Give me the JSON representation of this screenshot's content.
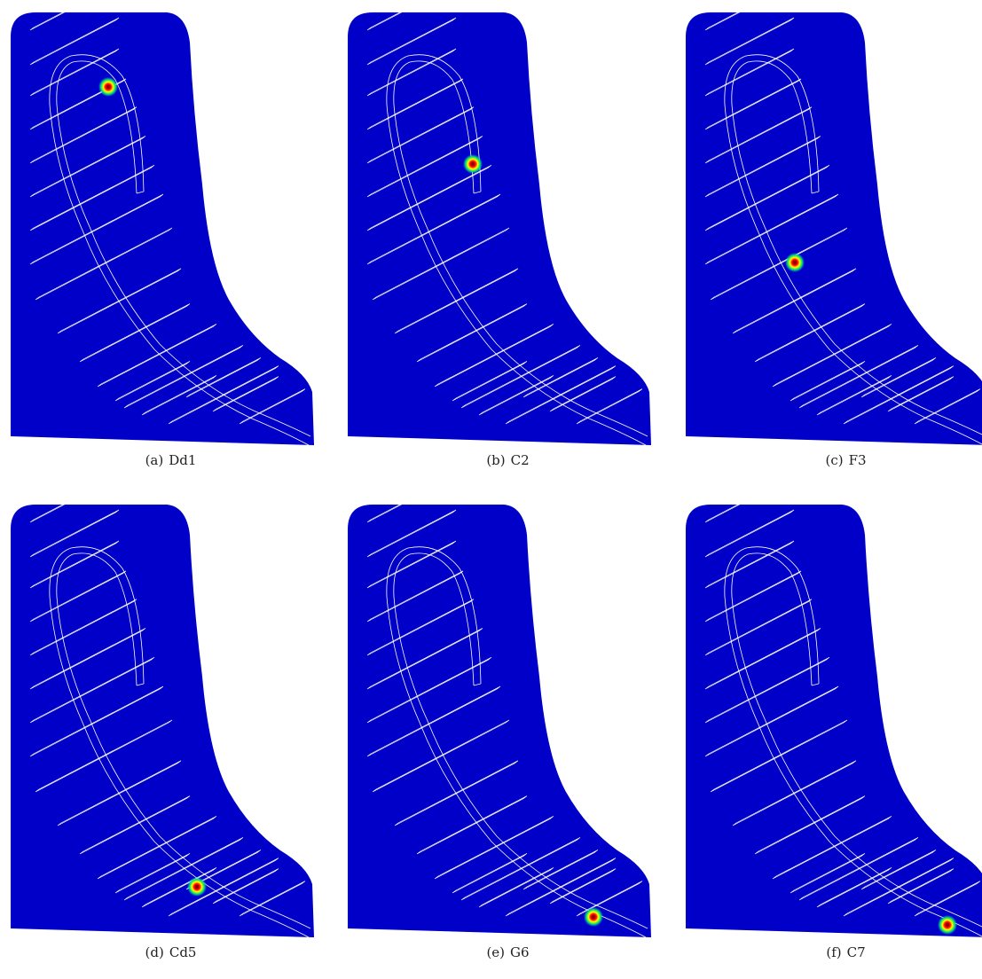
{
  "colors": {
    "background": "#0000c8",
    "lines": "#ffffff",
    "hotspot_core": "#ff0000",
    "hotspot_mid": "#ffff00",
    "hotspot_outer": "#00c0ff"
  },
  "panels": [
    {
      "tag": "(a)",
      "label": "Dd1",
      "hotspot": "Dd1"
    },
    {
      "tag": "(b)",
      "label": "C2",
      "hotspot": "C2"
    },
    {
      "tag": "(c)",
      "label": "F3",
      "hotspot": "F3"
    },
    {
      "tag": "(d)",
      "label": "Cd5",
      "hotspot": "Cd5"
    },
    {
      "tag": "(e)",
      "label": "G6",
      "hotspot": "G6"
    },
    {
      "tag": "(f)",
      "label": "C7",
      "hotspot": "C7"
    }
  ]
}
